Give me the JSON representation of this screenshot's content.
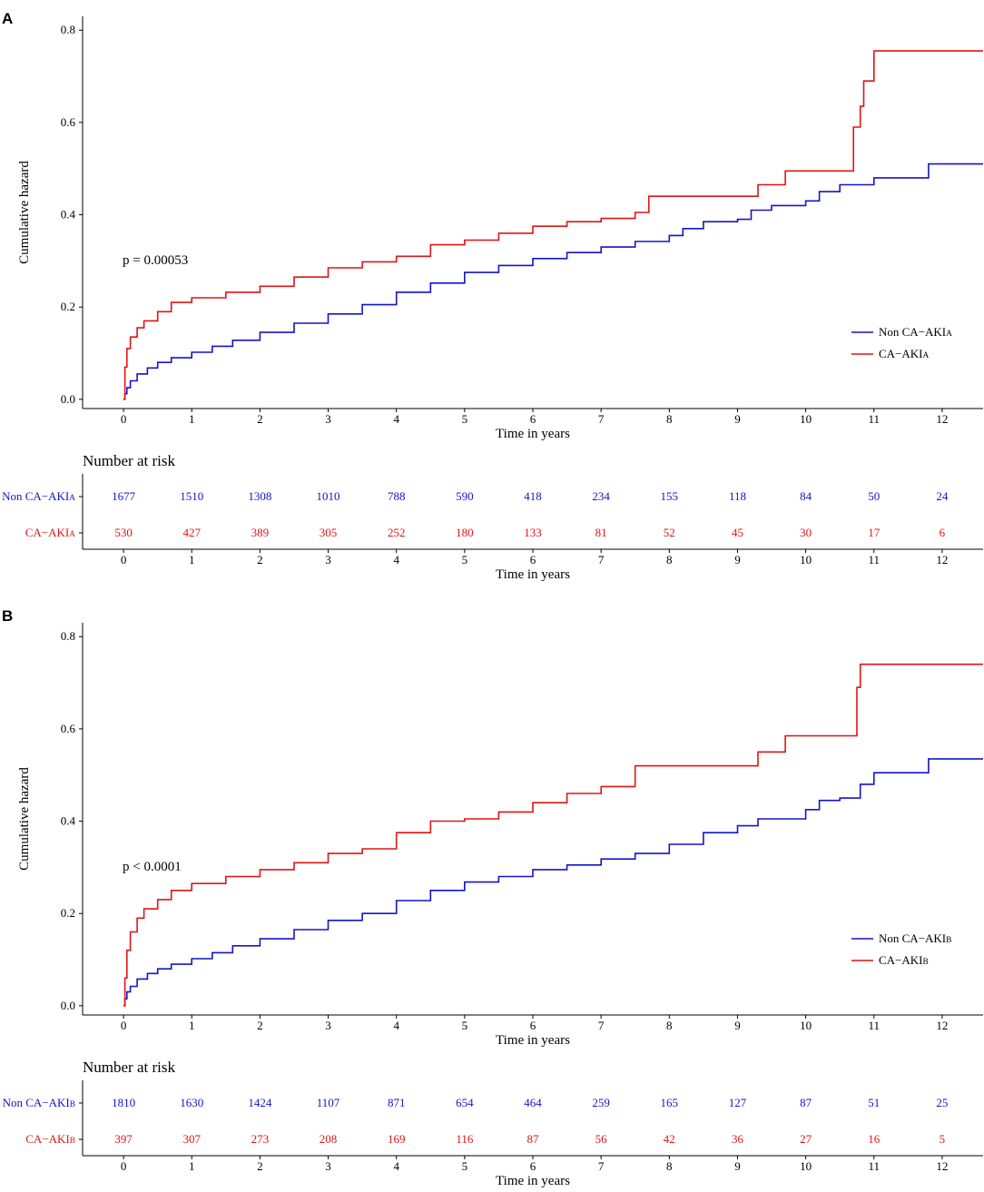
{
  "colors": {
    "non_ca": "#1414cc",
    "ca": "#e01414"
  },
  "panels": [
    {
      "letter": "A",
      "pvalue": "p = 0.00053",
      "legend": [
        "Non CA−AKIA",
        "CA−AKIA"
      ],
      "risk_title": "Number at risk",
      "risk_labels": [
        "Non CA−AKIA",
        "CA−AKIA"
      ],
      "risk_non_ca": [
        "1677",
        "1510",
        "1308",
        "1010",
        "788",
        "590",
        "418",
        "234",
        "155",
        "118",
        "84",
        "50",
        "24"
      ],
      "risk_ca": [
        "530",
        "427",
        "389",
        "305",
        "252",
        "180",
        "133",
        "81",
        "52",
        "45",
        "30",
        "17",
        "6"
      ]
    },
    {
      "letter": "B",
      "pvalue": "p < 0.0001",
      "legend": [
        "Non CA−AKIB",
        "CA−AKIB"
      ],
      "risk_title": "Number at risk",
      "risk_labels": [
        "Non CA−AKIB",
        "CA−AKIB"
      ],
      "risk_non_ca": [
        "1810",
        "1630",
        "1424",
        "1107",
        "871",
        "654",
        "464",
        "259",
        "165",
        "127",
        "87",
        "51",
        "25"
      ],
      "risk_ca": [
        "397",
        "307",
        "273",
        "208",
        "169",
        "116",
        "87",
        "56",
        "42",
        "36",
        "27",
        "16",
        "5"
      ]
    }
  ],
  "chart_data": [
    {
      "type": "line",
      "title": "",
      "xlabel": "Time in years",
      "ylabel": "Cumulative hazard",
      "xlim": [
        -0.6,
        12.6
      ],
      "ylim": [
        -0.02,
        0.83
      ],
      "xticks": [
        "0",
        "1",
        "2",
        "3",
        "4",
        "5",
        "6",
        "7",
        "8",
        "9",
        "10",
        "11",
        "12"
      ],
      "yticks": [
        "0.0",
        "0.2",
        "0.4",
        "0.6",
        "0.8"
      ],
      "series": [
        {
          "name": "Non CA−AKIA",
          "x": [
            0,
            0.02,
            0.05,
            0.1,
            0.2,
            0.35,
            0.5,
            0.7,
            1,
            1.3,
            1.6,
            2,
            2.5,
            3,
            3.5,
            4,
            4.5,
            5,
            5.5,
            6,
            6.5,
            7,
            7.5,
            8,
            8.2,
            8.5,
            9,
            9.2,
            9.5,
            10,
            10.2,
            10.5,
            11,
            11.5,
            11.8,
            12.6
          ],
          "y": [
            0,
            0.012,
            0.025,
            0.04,
            0.055,
            0.068,
            0.08,
            0.09,
            0.102,
            0.115,
            0.128,
            0.145,
            0.165,
            0.185,
            0.205,
            0.232,
            0.252,
            0.275,
            0.29,
            0.305,
            0.318,
            0.33,
            0.342,
            0.355,
            0.37,
            0.385,
            0.39,
            0.41,
            0.42,
            0.43,
            0.45,
            0.465,
            0.48,
            0.48,
            0.51,
            0.51
          ]
        },
        {
          "name": "CA−AKIA",
          "x": [
            0,
            0.02,
            0.05,
            0.1,
            0.2,
            0.3,
            0.5,
            0.7,
            1,
            1.5,
            2,
            2.5,
            3,
            3.5,
            4,
            4.5,
            5,
            5.5,
            6,
            6.5,
            7,
            7.5,
            7.7,
            8,
            8.5,
            9,
            9.3,
            9.7,
            10,
            10.5,
            10.7,
            10.8,
            10.85,
            11,
            11.5,
            12.6
          ],
          "y": [
            0,
            0.07,
            0.11,
            0.135,
            0.155,
            0.17,
            0.19,
            0.21,
            0.22,
            0.232,
            0.245,
            0.265,
            0.285,
            0.298,
            0.31,
            0.335,
            0.345,
            0.36,
            0.375,
            0.385,
            0.392,
            0.405,
            0.44,
            0.44,
            0.44,
            0.44,
            0.465,
            0.495,
            0.495,
            0.495,
            0.59,
            0.635,
            0.69,
            0.755,
            0.755,
            0.755
          ]
        }
      ]
    },
    {
      "type": "line",
      "title": "",
      "xlabel": "Time in years",
      "ylabel": "Cumulative hazard",
      "xlim": [
        -0.6,
        12.6
      ],
      "ylim": [
        -0.02,
        0.83
      ],
      "xticks": [
        "0",
        "1",
        "2",
        "3",
        "4",
        "5",
        "6",
        "7",
        "8",
        "9",
        "10",
        "11",
        "12"
      ],
      "yticks": [
        "0.0",
        "0.2",
        "0.4",
        "0.6",
        "0.8"
      ],
      "series": [
        {
          "name": "Non CA−AKIB",
          "x": [
            0,
            0.02,
            0.05,
            0.1,
            0.2,
            0.35,
            0.5,
            0.7,
            1,
            1.3,
            1.6,
            2,
            2.5,
            3,
            3.5,
            4,
            4.5,
            5,
            5.5,
            6,
            6.5,
            7,
            7.5,
            8,
            8.5,
            9,
            9.3,
            9.5,
            10,
            10.2,
            10.5,
            10.8,
            11,
            11.5,
            11.8,
            12.6
          ],
          "y": [
            0,
            0.015,
            0.03,
            0.042,
            0.058,
            0.07,
            0.08,
            0.09,
            0.102,
            0.115,
            0.13,
            0.145,
            0.165,
            0.185,
            0.2,
            0.228,
            0.25,
            0.268,
            0.28,
            0.295,
            0.305,
            0.318,
            0.33,
            0.35,
            0.375,
            0.39,
            0.405,
            0.405,
            0.425,
            0.445,
            0.45,
            0.48,
            0.505,
            0.505,
            0.535,
            0.535
          ]
        },
        {
          "name": "CA−AKIB",
          "x": [
            0,
            0.02,
            0.05,
            0.1,
            0.2,
            0.3,
            0.5,
            0.7,
            1,
            1.5,
            2,
            2.5,
            3,
            3.5,
            4,
            4.5,
            5,
            5.5,
            6,
            6.5,
            7,
            7.5,
            8,
            8.5,
            9,
            9.3,
            9.7,
            10,
            10.5,
            10.7,
            10.75,
            10.8,
            11,
            11.5,
            12,
            12.6
          ],
          "y": [
            0,
            0.06,
            0.12,
            0.16,
            0.19,
            0.21,
            0.23,
            0.25,
            0.265,
            0.28,
            0.295,
            0.31,
            0.33,
            0.34,
            0.375,
            0.4,
            0.405,
            0.42,
            0.44,
            0.46,
            0.475,
            0.52,
            0.52,
            0.52,
            0.52,
            0.55,
            0.585,
            0.585,
            0.585,
            0.585,
            0.69,
            0.74,
            0.74,
            0.74,
            0.74,
            0.74
          ]
        }
      ]
    }
  ]
}
